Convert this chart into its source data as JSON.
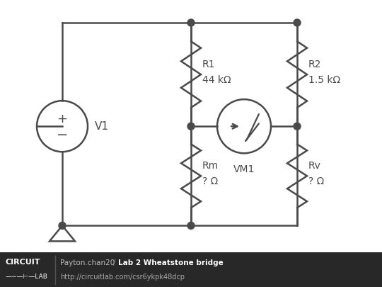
{
  "bg_color": "#ffffff",
  "footer_bg": "#282828",
  "line_color": "#4a4a4a",
  "line_width": 1.8,
  "dot_color": "#4a4a4a",
  "text_color": "#4a4a4a",
  "footer_text_color": "#ffffff",
  "footer_author": "Payton.chan20",
  "footer_title": "Lab 2 Wheatstone bridge",
  "footer_url": "http://circuitlab.com/csr6ykpk48dcp",
  "V1_label": "V1",
  "R1_label": "R1",
  "R1_val": "44 kΩ",
  "R2_label": "R2",
  "R2_val": "1.5 kΩ",
  "Rm_label": "Rm",
  "Rm_val": "? Ω",
  "Rv_label": "Rv",
  "Rv_val": "? Ω",
  "VM1_label": "VM1"
}
